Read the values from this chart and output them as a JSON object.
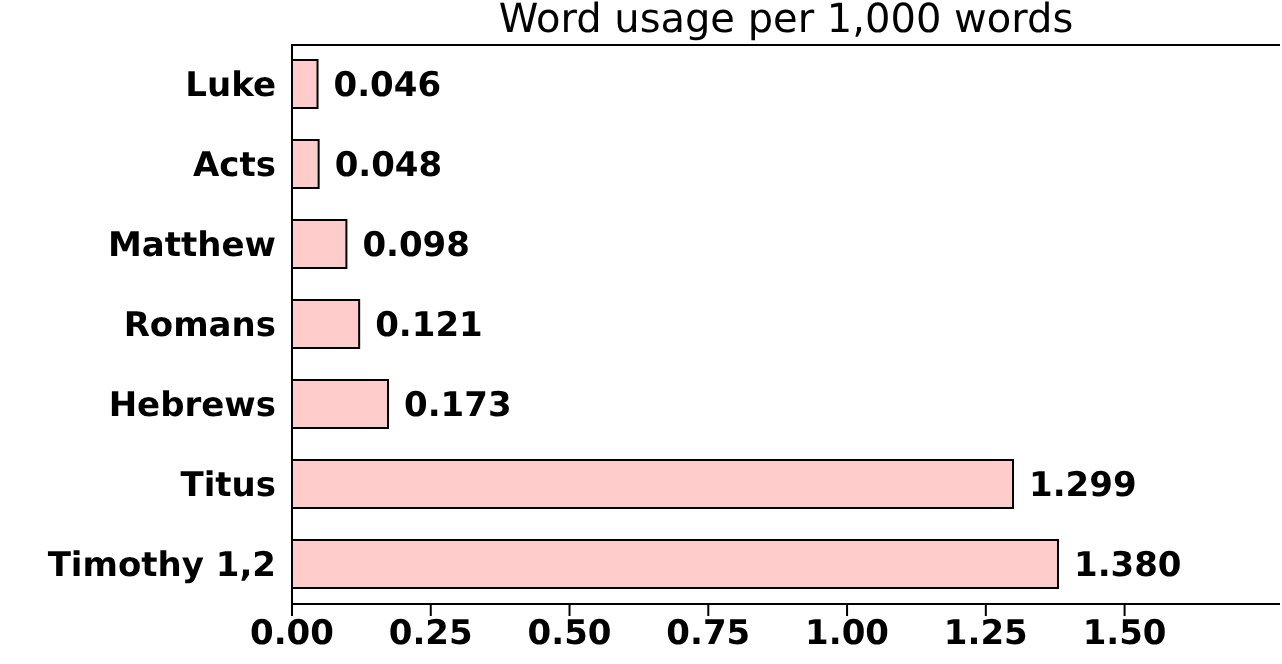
{
  "chart_data": {
    "type": "bar",
    "orientation": "horizontal",
    "title": "Word usage per 1,000 words",
    "categories": [
      "Luke",
      "Acts",
      "Matthew",
      "Romans",
      "Hebrews",
      "Titus",
      "Timothy 1,2"
    ],
    "values": [
      0.046,
      0.048,
      0.098,
      0.121,
      0.173,
      1.299,
      1.38
    ],
    "value_labels": [
      "0.046",
      "0.048",
      "0.098",
      "0.121",
      "0.173",
      "1.299",
      "1.380"
    ],
    "color": "#ffcccc",
    "xlim": [
      0,
      1.78
    ],
    "xticks": [
      {
        "value": 0,
        "label": "0.00"
      },
      {
        "value": 0.25,
        "label": "0.25"
      },
      {
        "value": 0.5,
        "label": "0.50"
      },
      {
        "value": 0.75,
        "label": "0.75"
      },
      {
        "value": 1,
        "label": "1.00"
      },
      {
        "value": 1.25,
        "label": "1.25"
      },
      {
        "value": 1.5,
        "label": "1.50"
      }
    ],
    "grid": false,
    "legend": false
  }
}
